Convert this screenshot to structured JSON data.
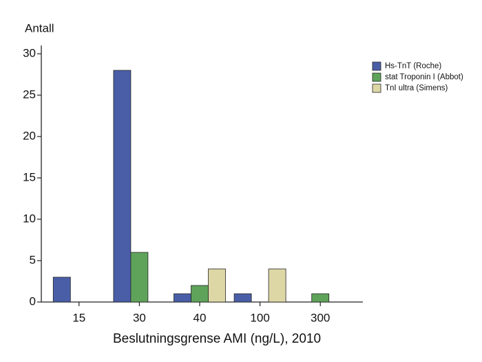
{
  "chart_data": {
    "type": "bar",
    "y_label": "Antall",
    "x_label": "Beslutningsgrense AMI (ng/L), 2010",
    "categories": [
      "15",
      "30",
      "40",
      "100",
      "300"
    ],
    "series": [
      {
        "name": "Hs-TnT (Roche)",
        "color": "#4a5ea8",
        "values": [
          3,
          28,
          1,
          1,
          0
        ]
      },
      {
        "name": "stat Troponin I (Abbot)",
        "color": "#5fa35a",
        "values": [
          0,
          6,
          2,
          0,
          1
        ]
      },
      {
        "name": "TnI ultra (Simens)",
        "color": "#ddd7a6",
        "values": [
          0,
          0,
          4,
          4,
          0
        ]
      }
    ],
    "ylim": [
      0,
      31
    ],
    "yticks": [
      0,
      5,
      10,
      15,
      20,
      25,
      30
    ],
    "legend": "upper right"
  }
}
